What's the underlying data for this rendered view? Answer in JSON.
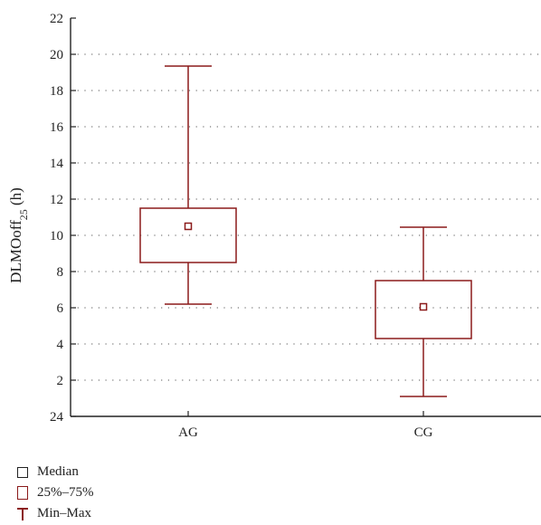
{
  "chart_data": {
    "type": "box",
    "ylabel": "DLMOoff",
    "ylabel_sub": "25",
    "ylabel_unit": " (h)",
    "y_ticks": [
      24,
      2,
      4,
      6,
      8,
      10,
      12,
      14,
      16,
      18,
      20,
      22
    ],
    "ylim": [
      0,
      22
    ],
    "grid": true,
    "categories": [
      "AG",
      "CG"
    ],
    "boxes": [
      {
        "category": "AG",
        "min": 6.2,
        "q1": 8.5,
        "median": 10.5,
        "q3": 11.5,
        "max": 19.35
      },
      {
        "category": "CG",
        "min": 1.1,
        "q1": 4.3,
        "median": 6.05,
        "q3": 7.5,
        "max": 10.45
      }
    ],
    "legend_position": "bottom-left",
    "colors": {
      "box": "#8b1a1a",
      "median_marker": "#8b1a1a",
      "axis": "#222222",
      "grid": "#555555"
    }
  },
  "legend": {
    "median": "Median",
    "iqr": "25%–75%",
    "minmax": "Min–Max"
  }
}
